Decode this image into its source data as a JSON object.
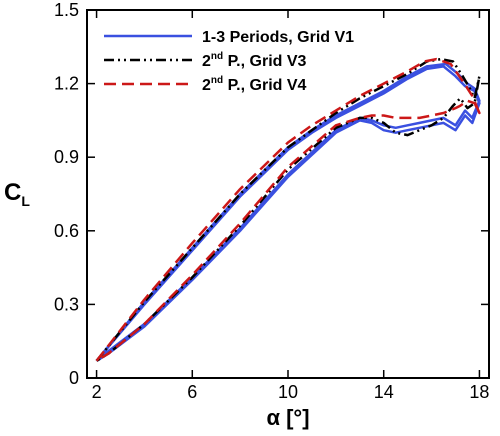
{
  "chart_data": {
    "type": "line",
    "xlabel": "α [°]",
    "ylabel": "C",
    "ylabel_sub": "L",
    "xlim": [
      1.6,
      18.4
    ],
    "ylim": [
      0,
      1.5
    ],
    "xticks": [
      2,
      6,
      10,
      14,
      18
    ],
    "yticks": [
      0,
      0.3,
      0.6,
      0.9,
      1.2,
      1.5
    ],
    "ytick_labels": [
      "0",
      "0.3",
      "0.6",
      "0.9",
      "1.2",
      "1.5"
    ],
    "grid": false,
    "legend_position": "top-left",
    "series": [
      {
        "name": "1-3 Periods, Grid V1",
        "color": "#3a50e0",
        "style": "solid",
        "loops": [
          {
            "upstroke": [
              [
                2,
                0.07
              ],
              [
                4,
                0.3
              ],
              [
                6,
                0.52
              ],
              [
                8,
                0.74
              ],
              [
                10,
                0.93
              ],
              [
                11,
                1.0
              ],
              [
                12,
                1.06
              ],
              [
                13,
                1.11
              ],
              [
                14,
                1.16
              ],
              [
                15,
                1.22
              ],
              [
                15.8,
                1.26
              ],
              [
                16.5,
                1.27
              ],
              [
                17,
                1.23
              ],
              [
                17.4,
                1.19
              ],
              [
                17.8,
                1.17
              ],
              [
                18,
                1.12
              ]
            ],
            "downstroke": [
              [
                18,
                1.12
              ],
              [
                17.7,
                1.04
              ],
              [
                17.4,
                1.07
              ],
              [
                17,
                1.01
              ],
              [
                16.5,
                1.04
              ],
              [
                16,
                1.03
              ],
              [
                15.5,
                1.02
              ],
              [
                15,
                1.01
              ],
              [
                14.5,
                1.0
              ],
              [
                14,
                1.01
              ],
              [
                13.5,
                1.04
              ],
              [
                13,
                1.05
              ],
              [
                12,
                1.0
              ],
              [
                10,
                0.82
              ],
              [
                8,
                0.6
              ],
              [
                6,
                0.4
              ],
              [
                4,
                0.21
              ],
              [
                2.5,
                0.1
              ],
              [
                2,
                0.07
              ]
            ]
          },
          {
            "upstroke": [
              [
                2,
                0.07
              ],
              [
                4,
                0.31
              ],
              [
                6,
                0.53
              ],
              [
                8,
                0.75
              ],
              [
                10,
                0.94
              ],
              [
                11,
                1.01
              ],
              [
                12,
                1.07
              ],
              [
                13,
                1.12
              ],
              [
                14,
                1.17
              ],
              [
                15,
                1.23
              ],
              [
                15.8,
                1.27
              ],
              [
                16.6,
                1.28
              ],
              [
                17.1,
                1.24
              ],
              [
                17.5,
                1.2
              ],
              [
                17.8,
                1.18
              ],
              [
                18,
                1.13
              ]
            ],
            "downstroke": [
              [
                18,
                1.13
              ],
              [
                17.7,
                1.06
              ],
              [
                17.4,
                1.09
              ],
              [
                17,
                1.03
              ],
              [
                16.5,
                1.06
              ],
              [
                16,
                1.05
              ],
              [
                15.5,
                1.04
              ],
              [
                15,
                1.03
              ],
              [
                14.5,
                1.02
              ],
              [
                14,
                1.03
              ],
              [
                13.5,
                1.05
              ],
              [
                13,
                1.06
              ],
              [
                12,
                1.01
              ],
              [
                10,
                0.83
              ],
              [
                8,
                0.61
              ],
              [
                6,
                0.41
              ],
              [
                4,
                0.22
              ],
              [
                2.5,
                0.11
              ],
              [
                2,
                0.07
              ]
            ]
          }
        ]
      },
      {
        "name": "2nd P., Grid V3",
        "name_parts": [
          "2",
          "nd",
          " P., Grid V3"
        ],
        "color": "#000000",
        "style": "dashdotdot",
        "loops": [
          {
            "upstroke": [
              [
                2,
                0.07
              ],
              [
                4,
                0.31
              ],
              [
                6,
                0.53
              ],
              [
                8,
                0.75
              ],
              [
                10,
                0.94
              ],
              [
                11,
                1.01
              ],
              [
                12,
                1.08
              ],
              [
                13,
                1.14
              ],
              [
                14,
                1.19
              ],
              [
                15,
                1.24
              ],
              [
                15.8,
                1.29
              ],
              [
                16.4,
                1.3
              ],
              [
                16.9,
                1.29
              ],
              [
                17.3,
                1.23
              ],
              [
                17.6,
                1.18
              ],
              [
                17.8,
                1.14
              ],
              [
                18,
                1.23
              ]
            ],
            "downstroke": [
              [
                18,
                1.23
              ],
              [
                17.8,
                1.12
              ],
              [
                17.5,
                1.1
              ],
              [
                17.2,
                1.14
              ],
              [
                16.9,
                1.11
              ],
              [
                16.5,
                1.06
              ],
              [
                16,
                1.03
              ],
              [
                15.5,
                1.01
              ],
              [
                15,
                0.99
              ],
              [
                14.5,
                1.0
              ],
              [
                14,
                1.04
              ],
              [
                13.5,
                1.06
              ],
              [
                13,
                1.06
              ],
              [
                12,
                1.02
              ],
              [
                10,
                0.85
              ],
              [
                8,
                0.62
              ],
              [
                6,
                0.41
              ],
              [
                4,
                0.22
              ],
              [
                2.5,
                0.1
              ],
              [
                2,
                0.07
              ]
            ]
          }
        ]
      },
      {
        "name": "2nd P., Grid V4",
        "name_parts": [
          "2",
          "nd",
          " P., Grid V4"
        ],
        "color": "#cc1818",
        "style": "dashed",
        "loops": [
          {
            "upstroke": [
              [
                2,
                0.07
              ],
              [
                4,
                0.32
              ],
              [
                6,
                0.55
              ],
              [
                8,
                0.77
              ],
              [
                10,
                0.96
              ],
              [
                11,
                1.03
              ],
              [
                12,
                1.09
              ],
              [
                13,
                1.15
              ],
              [
                14,
                1.2
              ],
              [
                15,
                1.25
              ],
              [
                15.7,
                1.29
              ],
              [
                16.2,
                1.3
              ],
              [
                16.8,
                1.28
              ],
              [
                17.3,
                1.21
              ],
              [
                17.7,
                1.15
              ],
              [
                18,
                1.08
              ]
            ],
            "downstroke": [
              [
                18,
                1.08
              ],
              [
                17.8,
                1.12
              ],
              [
                17.5,
                1.13
              ],
              [
                17.2,
                1.11
              ],
              [
                17,
                1.1
              ],
              [
                16.5,
                1.08
              ],
              [
                16,
                1.07
              ],
              [
                15.5,
                1.06
              ],
              [
                15,
                1.06
              ],
              [
                14.5,
                1.06
              ],
              [
                14,
                1.07
              ],
              [
                13.5,
                1.07
              ],
              [
                13,
                1.06
              ],
              [
                12,
                1.03
              ],
              [
                10,
                0.86
              ],
              [
                8,
                0.63
              ],
              [
                6,
                0.42
              ],
              [
                4,
                0.22
              ],
              [
                2.5,
                0.1
              ],
              [
                2,
                0.07
              ]
            ]
          }
        ]
      }
    ]
  }
}
